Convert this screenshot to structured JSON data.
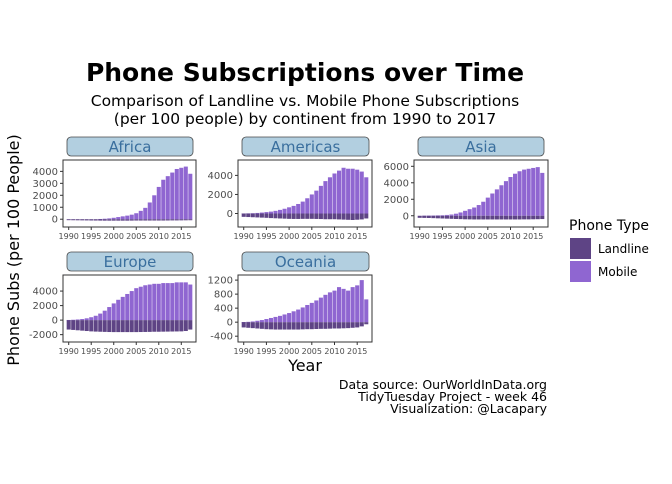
{
  "colors": {
    "landline": "#5e4485",
    "mobile": "#8f66d1",
    "strip_fill": "#b2cfe0",
    "strip_text": "#3a6f9e"
  },
  "chart_data": {
    "type": "bar",
    "title": "Phone Subscriptions over Time",
    "subtitle_lines": [
      "Comparison of Landline vs. Mobile Phone Subscriptions",
      "(per 100 people) by continent from 1990 to 2017"
    ],
    "xlabel": "Year",
    "ylabel": "Phone Subs (per 100 People)",
    "legend": {
      "title": "Phone Type",
      "position": "right",
      "entries": [
        "Landline",
        "Mobile"
      ]
    },
    "caption_lines": [
      "Data source: OurWorldInData.org",
      "TidyTuesday Project - week 46",
      "Visualization: @Lacapary"
    ],
    "years": [
      1990,
      1991,
      1992,
      1993,
      1994,
      1995,
      1996,
      1997,
      1998,
      1999,
      2000,
      2001,
      2002,
      2003,
      2004,
      2005,
      2006,
      2007,
      2008,
      2009,
      2010,
      2011,
      2012,
      2013,
      2014,
      2015,
      2016,
      2017
    ],
    "x_ticks": [
      1990,
      1995,
      2000,
      2005,
      2010,
      2015
    ],
    "panels": [
      {
        "name": "Africa",
        "y_ticks": [
          0,
          1000,
          2000,
          3000,
          4000
        ],
        "ylim": [
          -400,
          4700
        ],
        "series": [
          {
            "name": "Mobile",
            "values": [
              0,
              0,
              0,
              0,
              0,
              0,
              0,
              20,
              40,
              70,
              120,
              180,
              240,
              300,
              380,
              500,
              700,
              950,
              1400,
              2000,
              2700,
              3300,
              3600,
              3900,
              4200,
              4300,
              4400,
              3800
            ]
          },
          {
            "name": "Landline",
            "values": [
              -80,
              -85,
              -90,
              -95,
              -100,
              -105,
              -110,
              -115,
              -120,
              -120,
              -120,
              -120,
              -120,
              -120,
              -115,
              -110,
              -110,
              -110,
              -110,
              -110,
              -110,
              -110,
              -105,
              -100,
              -100,
              -95,
              -90,
              -85
            ]
          }
        ]
      },
      {
        "name": "Americas",
        "y_ticks": [
          0,
          2000,
          4000
        ],
        "ylim": [
          -1100,
          5300
        ],
        "series": [
          {
            "name": "Mobile",
            "values": [
              5,
              15,
              30,
              60,
              100,
              150,
              200,
              280,
              380,
              500,
              650,
              800,
              1000,
              1250,
              1600,
              2000,
              2400,
              2900,
              3400,
              3800,
              4200,
              4500,
              4800,
              4700,
              4700,
              4600,
              4400,
              3800
            ]
          },
          {
            "name": "Landline",
            "values": [
              -350,
              -370,
              -390,
              -410,
              -430,
              -450,
              -480,
              -500,
              -520,
              -540,
              -560,
              -570,
              -570,
              -560,
              -560,
              -560,
              -570,
              -580,
              -600,
              -600,
              -600,
              -620,
              -640,
              -660,
              -680,
              -650,
              -620,
              -520
            ]
          }
        ]
      },
      {
        "name": "Asia",
        "y_ticks": [
          0,
          2000,
          4000,
          6000
        ],
        "ylim": [
          -1000,
          6400
        ],
        "series": [
          {
            "name": "Mobile",
            "values": [
              0,
              5,
              10,
              20,
              40,
              60,
              100,
              150,
              250,
              400,
              600,
              800,
              1000,
              1300,
              1700,
              2200,
              2700,
              3200,
              3700,
              4200,
              4700,
              5100,
              5400,
              5600,
              5700,
              5800,
              5900,
              5200
            ]
          },
          {
            "name": "Landline",
            "values": [
              -250,
              -260,
              -270,
              -290,
              -310,
              -330,
              -350,
              -370,
              -390,
              -410,
              -430,
              -440,
              -450,
              -450,
              -450,
              -450,
              -450,
              -450,
              -450,
              -450,
              -450,
              -450,
              -450,
              -440,
              -440,
              -430,
              -420,
              -400
            ]
          }
        ]
      },
      {
        "name": "Europe",
        "y_ticks": [
          -2000,
          0,
          2000,
          4000
        ],
        "ylim": [
          -2600,
          5800
        ],
        "series": [
          {
            "name": "Mobile",
            "values": [
              20,
              50,
              90,
              150,
              250,
              400,
              600,
              900,
              1300,
              1800,
              2300,
              2800,
              3200,
              3600,
              4000,
              4400,
              4600,
              4800,
              4900,
              5000,
              5000,
              5100,
              5100,
              5100,
              5200,
              5200,
              5200,
              4900
            ]
          },
          {
            "name": "Landline",
            "values": [
              -1300,
              -1350,
              -1400,
              -1450,
              -1500,
              -1550,
              -1580,
              -1600,
              -1620,
              -1640,
              -1650,
              -1650,
              -1650,
              -1650,
              -1650,
              -1650,
              -1640,
              -1630,
              -1620,
              -1600,
              -1600,
              -1590,
              -1580,
              -1570,
              -1560,
              -1550,
              -1500,
              -1300
            ]
          }
        ]
      },
      {
        "name": "Oceania",
        "y_ticks": [
          -400,
          0,
          400,
          800,
          1200
        ],
        "ylim": [
          -480,
          1260
        ],
        "series": [
          {
            "name": "Mobile",
            "values": [
              5,
              10,
              20,
              40,
              60,
              90,
              120,
              150,
              180,
              220,
              260,
              310,
              360,
              420,
              490,
              550,
              620,
              700,
              780,
              850,
              900,
              1000,
              950,
              900,
              1000,
              1050,
              1200,
              650
            ]
          },
          {
            "name": "Landline",
            "values": [
              -150,
              -160,
              -170,
              -180,
              -190,
              -200,
              -205,
              -210,
              -210,
              -210,
              -210,
              -210,
              -210,
              -205,
              -200,
              -200,
              -195,
              -190,
              -190,
              -185,
              -180,
              -180,
              -175,
              -170,
              -160,
              -150,
              -120,
              -60
            ]
          }
        ]
      }
    ]
  }
}
